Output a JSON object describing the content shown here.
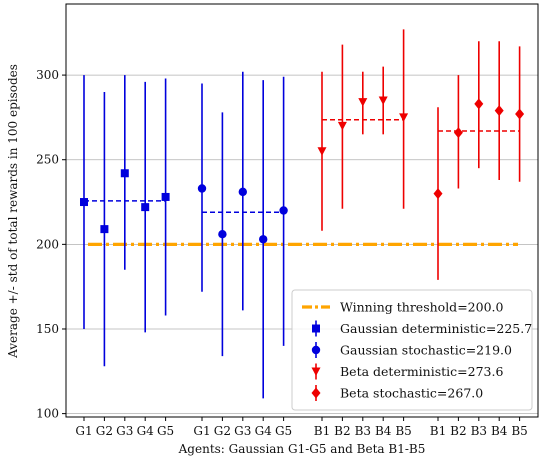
{
  "chart_data": {
    "type": "errorbar",
    "ylabel": "Average +/- std of total rewards in 100 episodes",
    "xlabel": "Agents: Gaussian G1-G5 and Beta B1-B5",
    "ylim": [
      98,
      342
    ],
    "yticks": [
      100,
      150,
      200,
      250,
      300
    ],
    "grid": "horizontal",
    "legend_position": "lower-right",
    "tick_groups": [
      [
        "G1",
        "G2",
        "G3",
        "G4",
        "G5"
      ],
      [
        "G1",
        "G2",
        "G3",
        "G4",
        "G5"
      ],
      [
        "B1",
        "B2",
        "B3",
        "B4",
        "B5"
      ],
      [
        "B1",
        "B2",
        "B3",
        "B4",
        "B5"
      ]
    ],
    "threshold": {
      "name": "Winning threshold=200.0",
      "value": 200.0,
      "color": "#ffa500"
    },
    "series": [
      {
        "name": "Gaussian deterministic=225.7",
        "color": "#0000dd",
        "marker": "square",
        "group": 0,
        "mean": 225.7,
        "values": [
          225,
          209,
          242,
          222,
          228
        ],
        "low": [
          150,
          128,
          185,
          148,
          158
        ],
        "high": [
          300,
          290,
          300,
          296,
          298
        ]
      },
      {
        "name": "Gaussian stochastic=219.0",
        "color": "#0000dd",
        "marker": "circle",
        "group": 1,
        "mean": 219.0,
        "values": [
          233,
          206,
          231,
          203,
          220
        ],
        "low": [
          172,
          134,
          161,
          109,
          140
        ],
        "high": [
          295,
          278,
          302,
          297,
          299
        ]
      },
      {
        "name": "Beta deterministic=273.6",
        "color": "#ee0000",
        "marker": "triangle-down",
        "group": 2,
        "mean": 273.6,
        "values": [
          255,
          270,
          284,
          285,
          275
        ],
        "low": [
          208,
          221,
          265,
          265,
          221
        ],
        "high": [
          302,
          318,
          302,
          305,
          327
        ]
      },
      {
        "name": "Beta stochastic=267.0",
        "color": "#ee0000",
        "marker": "diamond",
        "group": 3,
        "mean": 267.0,
        "values": [
          230,
          266,
          283,
          279,
          277
        ],
        "low": [
          179,
          233,
          245,
          238,
          237
        ],
        "high": [
          281,
          300,
          320,
          320,
          317
        ]
      }
    ]
  }
}
